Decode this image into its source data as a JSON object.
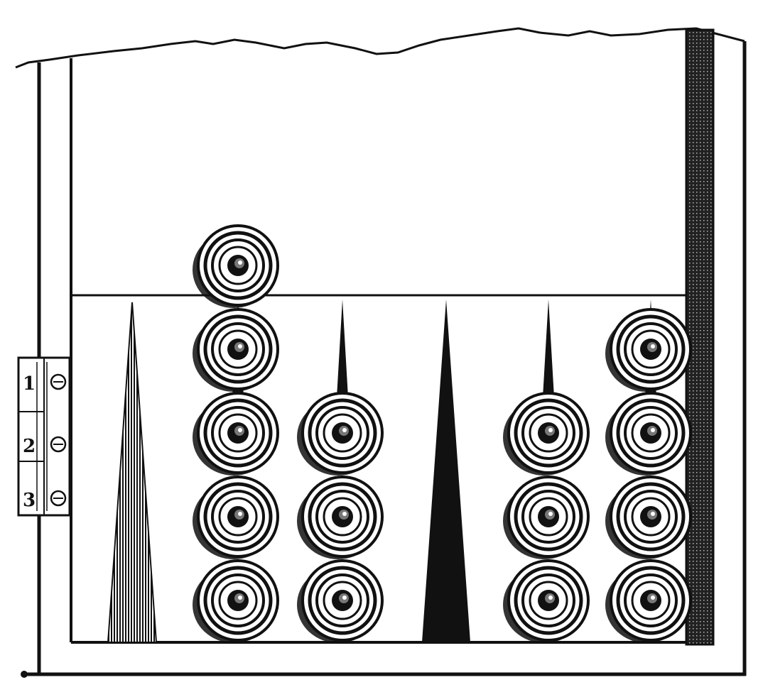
{
  "scene": {
    "subject": "backgammon-board-woodcut",
    "colors": {
      "ink": "#111111",
      "paper": "#ffffff"
    },
    "points": [
      {
        "style": "hatched",
        "checkers": 0
      },
      {
        "style": "thin",
        "checkers": 5
      },
      {
        "style": "thin",
        "checkers": 3
      },
      {
        "style": "solid",
        "checkers": 0
      },
      {
        "style": "thin",
        "checkers": 3
      },
      {
        "style": "thin",
        "checkers": 4
      }
    ],
    "hinge_marks": [
      "1",
      "2",
      "3"
    ]
  }
}
